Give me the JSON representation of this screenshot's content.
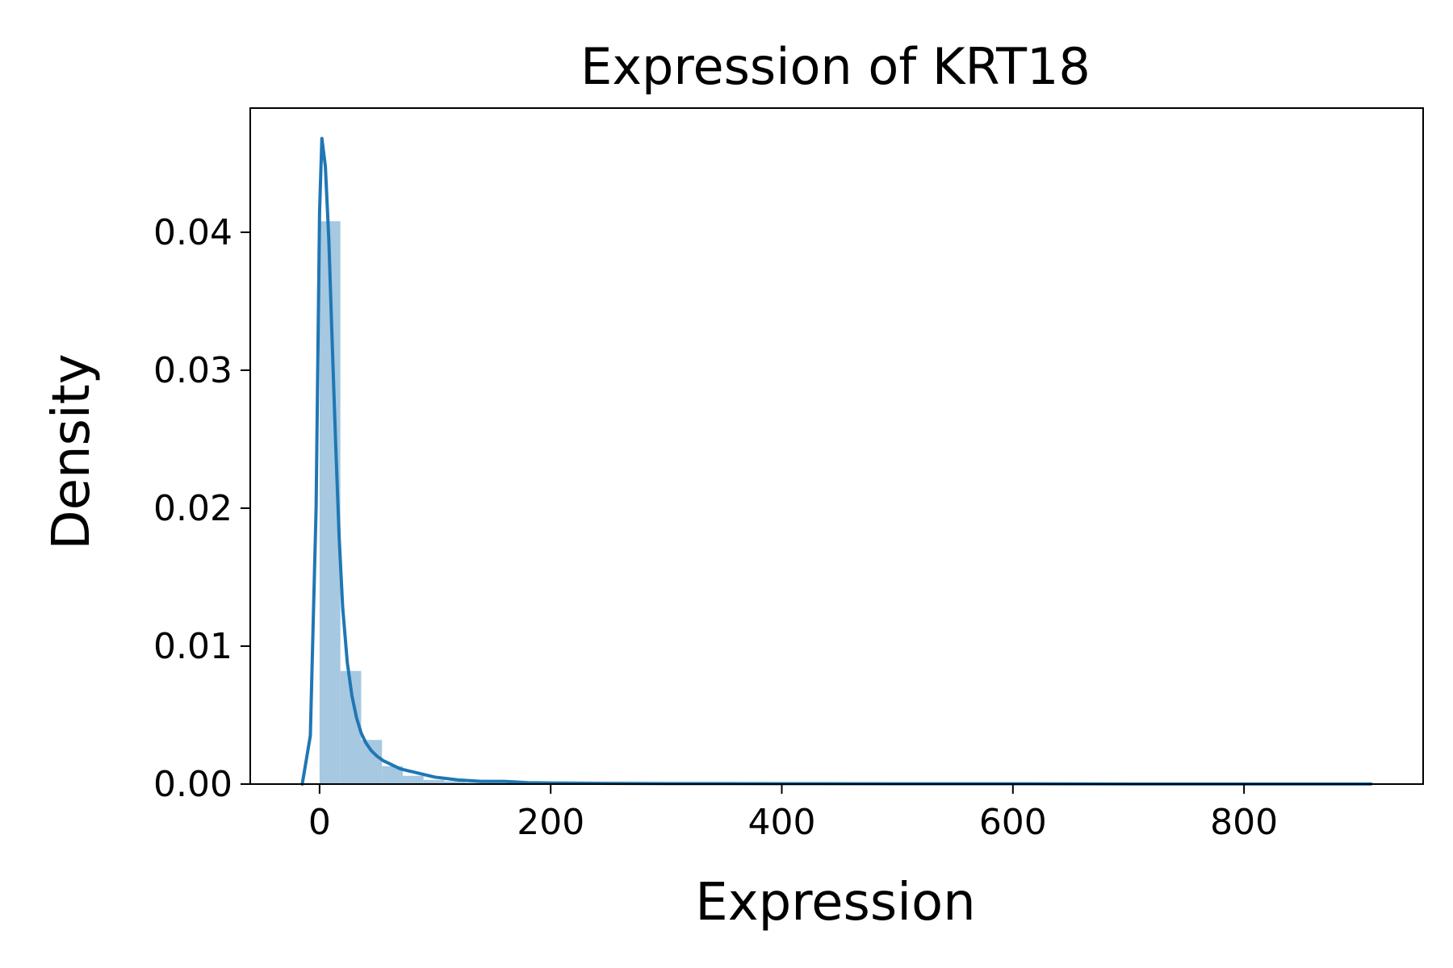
{
  "chart_data": {
    "type": "histogram+kde",
    "title": "Expression of KRT18",
    "xlabel": "Expression",
    "ylabel": "Density",
    "xlim": [
      -60,
      955
    ],
    "ylim": [
      0,
      0.049
    ],
    "xticks": [
      0,
      200,
      400,
      600,
      800
    ],
    "xtick_labels": [
      "0",
      "200",
      "400",
      "600",
      "800"
    ],
    "yticks": [
      0,
      0.01,
      0.02,
      0.03,
      0.04
    ],
    "ytick_labels": [
      "0.00",
      "0.01",
      "0.02",
      "0.03",
      "0.04"
    ],
    "grid": false,
    "legend": "none",
    "colors": {
      "bars": "#a6c8e1",
      "kde": "#1f77b4",
      "axes": "#000000"
    },
    "histogram": {
      "bin_edges": [
        0,
        18,
        36,
        54,
        72,
        90,
        108,
        126,
        144,
        162,
        180,
        198,
        216,
        234,
        252,
        270,
        288,
        306,
        324,
        342,
        360,
        378,
        396,
        414,
        432,
        450,
        468,
        486,
        504,
        522,
        540,
        558,
        576,
        594,
        612,
        630,
        648,
        666,
        684,
        702,
        720,
        738,
        756,
        774,
        792,
        810,
        828,
        846,
        864,
        882,
        900,
        910
      ],
      "density": [
        0.0408,
        0.0082,
        0.0032,
        0.0013,
        0.0006,
        0.0003,
        0.0002,
        0.0001,
        0.0001,
        0.0001,
        5e-05,
        5e-05,
        3e-05,
        3e-05,
        2e-05,
        2e-05,
        2e-05,
        1e-05,
        1e-05,
        1e-05,
        1e-05,
        1e-05,
        1e-05,
        1e-05,
        1e-05,
        1e-05,
        1e-05,
        1e-05,
        1e-05,
        1e-05,
        1e-05,
        1e-05,
        1e-05,
        1e-05,
        1e-05,
        1e-05,
        1e-05,
        1e-05,
        1e-05,
        1e-05,
        1e-05,
        1e-05,
        1e-05,
        1e-05,
        1e-05,
        1e-05,
        1e-05,
        1e-05,
        1e-05,
        1e-05,
        1e-05
      ]
    },
    "kde": {
      "x": [
        -15,
        -8,
        -3,
        0,
        2,
        5,
        8,
        11,
        14,
        17,
        20,
        24,
        28,
        32,
        36,
        40,
        45,
        50,
        55,
        60,
        65,
        70,
        75,
        80,
        90,
        100,
        110,
        120,
        140,
        160,
        180,
        200,
        250,
        300,
        400,
        500,
        600,
        700,
        800,
        910
      ],
      "y": [
        0.0,
        0.0035,
        0.02,
        0.0415,
        0.0468,
        0.0448,
        0.0395,
        0.0318,
        0.0245,
        0.0178,
        0.0128,
        0.0088,
        0.0064,
        0.0048,
        0.0037,
        0.003,
        0.0024,
        0.002,
        0.0017,
        0.0015,
        0.0013,
        0.0011,
        0.001,
        0.0009,
        0.0007,
        0.0005,
        0.0004,
        0.0003,
        0.0002,
        0.0002,
        0.0001,
        8e-05,
        5e-05,
        4e-05,
        3e-05,
        2e-05,
        2e-05,
        1e-05,
        1e-05,
        1e-05
      ]
    }
  }
}
